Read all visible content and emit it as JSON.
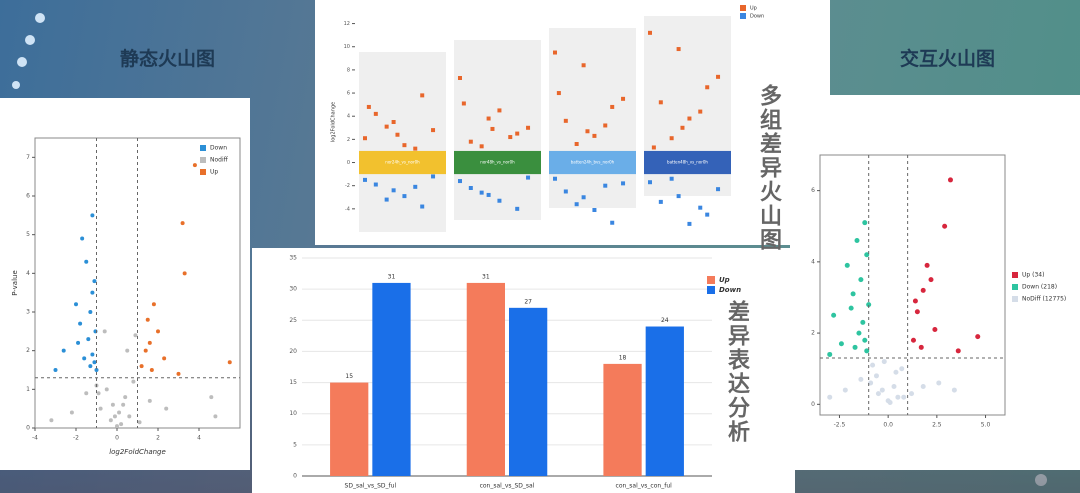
{
  "captions": [
    "静态火山图",
    "交互火山图",
    "多组差异火山图",
    "差异表达分析"
  ],
  "chart_data": [
    {
      "type": "scatter",
      "xlabel": "log2FoldChange",
      "ylabel": "P-value",
      "xlim": [
        -4,
        6
      ],
      "xticks": [
        -4,
        -2,
        0,
        2,
        4
      ],
      "ylim": [
        0,
        7.5
      ],
      "yticks": [
        0,
        1,
        2,
        3,
        4,
        5,
        6,
        7
      ],
      "thresholds": {
        "x": [
          -1,
          1
        ],
        "y": 1.3
      },
      "legend": "top-right",
      "series": [
        {
          "name": "Down",
          "color": "#2b8fd6",
          "x": [
            -1.2,
            -1.5,
            -1.1,
            -2.0,
            -1.3,
            -1.8,
            -1.05,
            -1.4,
            -2.6,
            -1.2,
            -1.6,
            -1.1,
            -1.3,
            -3.0,
            -1.0,
            -1.7,
            -1.2,
            -1.9
          ],
          "values": [
            5.5,
            4.3,
            3.8,
            3.2,
            3.0,
            2.7,
            2.5,
            2.3,
            2.0,
            1.9,
            1.8,
            1.7,
            1.6,
            1.5,
            1.5,
            4.9,
            3.5,
            2.2
          ]
        },
        {
          "name": "Nodiff",
          "color": "#bdbdbd",
          "x": [
            -0.5,
            -0.2,
            0.1,
            0.4,
            0.8,
            -0.8,
            -0.3,
            0.2,
            0.6,
            -1.5,
            1.6,
            -2.2,
            2.4,
            -0.6,
            0.5,
            0.0,
            -0.1,
            0.3,
            -3.2,
            4.6,
            4.8,
            -1.0,
            1.1,
            0.9,
            -0.9
          ],
          "values": [
            1.0,
            0.6,
            0.4,
            0.8,
            1.2,
            0.5,
            0.2,
            0.1,
            0.3,
            0.9,
            0.7,
            0.4,
            0.5,
            2.5,
            2.0,
            0.05,
            0.3,
            0.6,
            0.2,
            0.8,
            0.3,
            1.1,
            0.15,
            2.4,
            0.9
          ]
        },
        {
          "name": "Up",
          "color": "#e8702a",
          "x": [
            3.8,
            3.2,
            3.3,
            1.8,
            1.5,
            2.0,
            1.6,
            1.4,
            2.3,
            5.5,
            1.2,
            1.7,
            3.0
          ],
          "values": [
            6.8,
            5.3,
            4.0,
            3.2,
            2.8,
            2.5,
            2.2,
            2.0,
            1.8,
            1.7,
            1.6,
            1.5,
            1.4
          ]
        }
      ]
    },
    {
      "type": "strip",
      "ylabel": "log2FoldChange",
      "ylim": [
        -6,
        13
      ],
      "yticks": [
        -4,
        -2,
        0,
        2,
        4,
        6,
        8,
        10,
        12
      ],
      "categories": [
        "nor24h_vs_nor0h",
        "nor48h_vs_nor0h",
        "batten24h_bvs_nor0h",
        "batten48h_vs_nor0h"
      ],
      "category_colors": [
        "#f2c12e",
        "#3a8f3e",
        "#6aaee8",
        "#3462b8"
      ],
      "legend": "top-right",
      "series": [
        {
          "name": "Up",
          "color": "#e8662b",
          "values": [
            [
              2.1,
              3.5,
              5.8,
              4.2,
              1.5,
              2.8,
              3.1,
              1.2,
              4.8,
              2.4
            ],
            [
              7.3,
              3.8,
              2.5,
              1.8,
              4.5,
              3.0,
              1.4,
              2.2,
              5.1,
              2.9
            ],
            [
              9.5,
              8.4,
              4.8,
              3.6,
              2.3,
              5.5,
              1.6,
              3.2,
              6.0,
              2.7
            ],
            [
              11.2,
              9.8,
              6.5,
              5.2,
              3.8,
              7.4,
              2.1,
              4.4,
              1.3,
              3.0
            ]
          ]
        },
        {
          "name": "Down",
          "color": "#3a86e0",
          "values": [
            [
              -1.5,
              -2.4,
              -3.8,
              -1.9,
              -2.9,
              -1.2,
              -3.2,
              -2.1
            ],
            [
              -1.6,
              -2.8,
              -4.0,
              -2.2,
              -3.3,
              -1.3,
              -2.6
            ],
            [
              -1.4,
              -3.0,
              -5.2,
              -2.5,
              -4.1,
              -1.8,
              -3.6,
              -2.0
            ],
            [
              -1.7,
              -2.9,
              -4.5,
              -3.4,
              -5.3,
              -2.3,
              -1.4,
              -3.9
            ]
          ]
        }
      ]
    },
    {
      "type": "bar",
      "categories": [
        "SD_sal_vs_SD_ful",
        "con_sal_vs_SD_sal",
        "con_sal_vs_con_ful"
      ],
      "ylim": [
        0,
        35
      ],
      "yticks": [
        0,
        5,
        10,
        15,
        20,
        25,
        30,
        35
      ],
      "grid": true,
      "legend": "top-right",
      "series": [
        {
          "name": "Up",
          "color": "#f47b5b",
          "values": [
            15,
            31,
            18
          ]
        },
        {
          "name": "Down",
          "color": "#1a6fe8",
          "values": [
            31,
            27,
            24
          ]
        }
      ]
    },
    {
      "type": "scatter",
      "xlim": [
        -3.5,
        6
      ],
      "xticks": [
        -2.5,
        {
          "value": 0,
          "label": "0.0"
        },
        2.5,
        {
          "value": 5,
          "label": "5.0"
        }
      ],
      "ylim": [
        -0.3,
        7
      ],
      "yticks": [
        0,
        2,
        4,
        6
      ],
      "thresholds": {
        "x": [
          -1,
          1
        ],
        "y": 1.3
      },
      "legend": "right",
      "series": [
        {
          "name": "Up (34)",
          "color": "#d7263d",
          "x": [
            3.2,
            2.9,
            2.0,
            1.8,
            1.5,
            2.4,
            1.3,
            4.6,
            1.7,
            2.2,
            3.6,
            1.4
          ],
          "values": [
            6.3,
            5.0,
            3.9,
            3.2,
            2.6,
            2.1,
            1.8,
            1.9,
            1.6,
            3.5,
            1.5,
            2.9
          ]
        },
        {
          "name": "Down (218)",
          "color": "#2ec4a0",
          "x": [
            -1.2,
            -1.6,
            -1.1,
            -2.1,
            -1.4,
            -1.8,
            -1.0,
            -2.8,
            -1.3,
            -1.5,
            -1.2,
            -2.4,
            -1.7,
            -1.1,
            -3.0,
            -1.9
          ],
          "values": [
            5.1,
            4.6,
            4.2,
            3.9,
            3.5,
            3.1,
            2.8,
            2.5,
            2.3,
            2.0,
            1.8,
            1.7,
            1.6,
            1.5,
            1.4,
            2.7
          ]
        },
        {
          "name": "NoDiff (12775)",
          "color": "#d5dde8",
          "x": [
            -0.6,
            -0.3,
            0.0,
            0.3,
            0.7,
            -0.9,
            0.5,
            -0.2,
            1.2,
            -1.4,
            1.8,
            -2.2,
            2.6,
            0.1,
            -0.5,
            0.8,
            -3.0,
            3.4,
            -0.8,
            0.4
          ],
          "values": [
            0.8,
            0.4,
            0.1,
            0.5,
            1.0,
            0.6,
            0.2,
            1.2,
            0.3,
            0.7,
            0.5,
            0.4,
            0.6,
            0.05,
            0.3,
            0.2,
            0.2,
            0.4,
            1.1,
            0.9
          ]
        }
      ]
    }
  ]
}
